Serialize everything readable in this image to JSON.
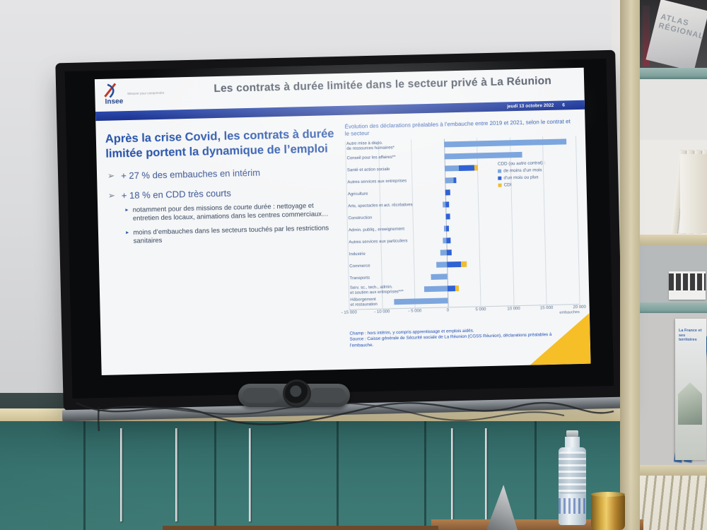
{
  "slide": {
    "logo": {
      "name": "Insee",
      "tagline": "Mesurer pour comprendre"
    },
    "title": "Les contrats à durée limitée dans le secteur privé à La Réunion",
    "date_bar": {
      "date": "jeudi 13 octobre 2022",
      "page": "6"
    },
    "left": {
      "heading": "Après la crise Covid, les contrats à durée limitée portent la dynamique de l’emploi",
      "bullets": [
        {
          "text": "+ 27 % des embauches en intérim"
        },
        {
          "text": "+ 18 % en CDD très courts",
          "sub": [
            "notamment pour des missions de courte durée : nettoyage et entretien des locaux, animations dans les centres commerciaux…",
            "moins d’embauches dans les secteurs touchés par les restrictions sanitaires"
          ]
        }
      ]
    },
    "footnotes": {
      "champ": "Champ : hors intérim, y compris apprentissage et emplois aidés.",
      "source": "Source : Caisse générale de Sécurité sociale de La Réunion (CGSS Réunion), déclarations préalables à l’embauche."
    }
  },
  "chart_data": {
    "type": "bar",
    "orientation": "horizontal",
    "title": "Évolution des déclarations préalables à l’embauche entre 2019 et 2021, selon le contrat et le secteur",
    "unit": "embauches",
    "xlim": [
      -15000,
      20000
    ],
    "xtick_values": [
      -15000,
      -10000,
      -5000,
      0,
      5000,
      10000,
      15000,
      20000
    ],
    "xtick_labels": [
      "- 15 000",
      "- 10 000",
      "- 5 000",
      "0",
      "5 000",
      "10 000",
      "15 000",
      "20 000"
    ],
    "grid": true,
    "legend_title": "CDD (ou autre contrat) :",
    "legend_position": "inside-right",
    "categories": [
      "Autre mise à dispo.\nde ressources humaines*",
      "Conseil pour les affaires**",
      "Santé et action sociale",
      "Autres services aux entreprises",
      "Agriculture",
      "Arts, spectacles et act. récréatives",
      "Construction",
      "Admin. publiq., enseignement",
      "Autres services aux particuliers",
      "Industrie",
      "Commerce",
      "Transports",
      "Serv. sc., tech., admin.\net soutien aux entreprises***",
      "Hébergement\net restauration"
    ],
    "series": [
      {
        "name": "de moins d’un mois",
        "color": "#7da6de",
        "values": [
          18600,
          11800,
          2200,
          1300,
          0,
          -400,
          0,
          -300,
          -500,
          -900,
          -1600,
          -2400,
          -3500,
          -8100
        ]
      },
      {
        "name": "d’un mois ou plus",
        "color": "#2f62d4",
        "values": [
          0,
          0,
          2300,
          500,
          800,
          600,
          700,
          450,
          650,
          800,
          2200,
          0,
          1200,
          0
        ]
      },
      {
        "name": "CDI",
        "color": "#eebd37",
        "values": [
          0,
          0,
          600,
          0,
          0,
          0,
          0,
          0,
          0,
          0,
          800,
          0,
          500,
          0
        ]
      }
    ]
  },
  "environment": {
    "bookshelf": {
      "top_book": "ATLAS RÉGIONAL",
      "featured_book": "La France et ses territoires"
    }
  }
}
